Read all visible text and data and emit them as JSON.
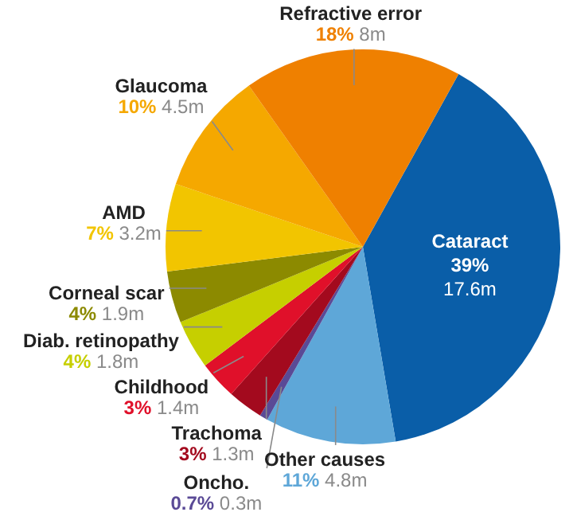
{
  "chart_data": {
    "type": "pie",
    "categories": [
      "Cataract",
      "Other causes",
      "Oncho.",
      "Trachoma",
      "Childhood",
      "Diab. retinopathy",
      "Corneal scar",
      "AMD",
      "Glaucoma",
      "Refractive error"
    ],
    "values": [
      17.6,
      4.8,
      0.3,
      1.3,
      1.4,
      1.8,
      1.9,
      3.2,
      4.5,
      8
    ],
    "value_labels": [
      "17.6m",
      "4.8m",
      "0.3m",
      "1.3m",
      "1.4m",
      "1.8m",
      "1.9m",
      "3.2m",
      "4.5m",
      "8m"
    ],
    "colors": [
      "#0a5ea8",
      "#5ea7d8",
      "#5a4a96",
      "#a30a1e",
      "#e0102a",
      "#c6cf00",
      "#8c8a00",
      "#f2c500",
      "#f5a800",
      "#ef8000"
    ],
    "annotations": [
      {
        "text": "39%",
        "x": "Cataract"
      },
      {
        "text": "11%",
        "x": "Other causes"
      },
      {
        "text": "0.7%",
        "x": "Oncho."
      },
      {
        "text": "3%",
        "x": "Trachoma"
      },
      {
        "text": "3%",
        "x": "Childhood"
      },
      {
        "text": "4%",
        "x": "Diab. retinopathy"
      },
      {
        "text": "4%",
        "x": "Corneal scar"
      },
      {
        "text": "7%",
        "x": "AMD"
      },
      {
        "text": "10%",
        "x": "Glaucoma"
      },
      {
        "text": "18%",
        "x": "Refractive error"
      }
    ]
  }
}
